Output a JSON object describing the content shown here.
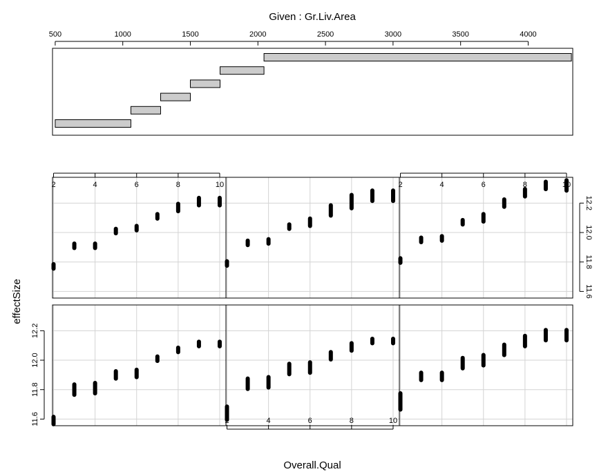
{
  "chart_data": {
    "type": "scatter",
    "plot_kind": "coplot",
    "given": {
      "title": "Given : Gr.Liv.Area",
      "xlim": [
        480,
        4330
      ],
      "ticks": [
        500,
        1000,
        1500,
        2000,
        2500,
        3000,
        3500,
        4000
      ],
      "tick_labels": [
        "500",
        "1000",
        "1500",
        "2000",
        "2500",
        "3000",
        "3500",
        "4000"
      ],
      "intervals": [
        {
          "lo": 500,
          "hi": 1060
        },
        {
          "lo": 1060,
          "hi": 1280
        },
        {
          "lo": 1280,
          "hi": 1500
        },
        {
          "lo": 1500,
          "hi": 1720
        },
        {
          "lo": 1720,
          "hi": 2045
        },
        {
          "lo": 2045,
          "hi": 4320
        }
      ]
    },
    "xlabel": "Overall.Qual",
    "ylabel": "effectSize",
    "xlim": [
      1.95,
      10.3
    ],
    "ylim": [
      11.555,
      12.375
    ],
    "x_ticks": [
      2,
      4,
      6,
      8,
      10
    ],
    "x_tick_labels": [
      "2",
      "4",
      "6",
      "8",
      "10"
    ],
    "y_ticks": [
      11.6,
      11.8,
      12.0,
      12.2
    ],
    "y_tick_labels": [
      "11.6",
      "11.8",
      "12.0",
      "12.2"
    ],
    "grid": true,
    "panel_layout": {
      "columns": 3,
      "rows": 2
    },
    "panels": [
      {
        "row": 1,
        "col": 1,
        "interval": 1,
        "points": [
          [
            2,
            11.59,
            0.03
          ],
          [
            3,
            11.8,
            0.04
          ],
          [
            4,
            11.81,
            0.04
          ],
          [
            5,
            11.9,
            0.03
          ],
          [
            6,
            11.91,
            0.03
          ],
          [
            7,
            12.01,
            0.02
          ],
          [
            8,
            12.07,
            0.02
          ],
          [
            9,
            12.11,
            0.02
          ],
          [
            10,
            12.11,
            0.02
          ]
        ]
      },
      {
        "row": 1,
        "col": 2,
        "interval": 2,
        "points": [
          [
            2,
            11.64,
            0.05
          ],
          [
            3,
            11.84,
            0.04
          ],
          [
            4,
            11.85,
            0.04
          ],
          [
            5,
            11.94,
            0.04
          ],
          [
            6,
            11.95,
            0.04
          ],
          [
            7,
            12.03,
            0.03
          ],
          [
            8,
            12.09,
            0.03
          ],
          [
            9,
            12.13,
            0.02
          ],
          [
            10,
            12.13,
            0.02
          ]
        ]
      },
      {
        "row": 1,
        "col": 3,
        "interval": 3,
        "points": [
          [
            2,
            11.72,
            0.06
          ],
          [
            3,
            11.89,
            0.03
          ],
          [
            4,
            11.89,
            0.03
          ],
          [
            5,
            11.98,
            0.04
          ],
          [
            6,
            12.0,
            0.04
          ],
          [
            7,
            12.07,
            0.04
          ],
          [
            8,
            12.13,
            0.04
          ],
          [
            9,
            12.17,
            0.04
          ],
          [
            10,
            12.17,
            0.04
          ]
        ]
      },
      {
        "row": 2,
        "col": 1,
        "interval": 4,
        "points": [
          [
            2,
            11.77,
            0.02
          ],
          [
            3,
            11.91,
            0.02
          ],
          [
            4,
            11.91,
            0.02
          ],
          [
            5,
            12.01,
            0.02
          ],
          [
            6,
            12.03,
            0.02
          ],
          [
            7,
            12.11,
            0.02
          ],
          [
            8,
            12.17,
            0.03
          ],
          [
            9,
            12.21,
            0.03
          ],
          [
            10,
            12.21,
            0.03
          ]
        ]
      },
      {
        "row": 2,
        "col": 2,
        "interval": 5,
        "points": [
          [
            2,
            11.79,
            0.02
          ],
          [
            3,
            11.93,
            0.02
          ],
          [
            4,
            11.94,
            0.02
          ],
          [
            5,
            12.04,
            0.02
          ],
          [
            6,
            12.07,
            0.03
          ],
          [
            7,
            12.15,
            0.04
          ],
          [
            8,
            12.21,
            0.05
          ],
          [
            9,
            12.25,
            0.04
          ],
          [
            10,
            12.25,
            0.04
          ]
        ]
      },
      {
        "row": 2,
        "col": 3,
        "interval": 6,
        "points": [
          [
            2,
            11.81,
            0.02
          ],
          [
            3,
            11.95,
            0.02
          ],
          [
            4,
            11.96,
            0.02
          ],
          [
            5,
            12.07,
            0.02
          ],
          [
            6,
            12.1,
            0.03
          ],
          [
            7,
            12.2,
            0.03
          ],
          [
            8,
            12.27,
            0.03
          ],
          [
            9,
            12.32,
            0.03
          ],
          [
            10,
            12.32,
            0.04
          ]
        ]
      }
    ]
  }
}
